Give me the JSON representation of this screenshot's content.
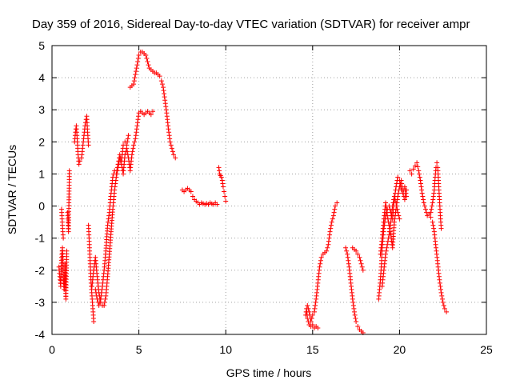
{
  "chart_data": {
    "type": "scatter",
    "title": "Day 359 of 2016, Sidereal Day-to-day VTEC variation (SDTVAR) for receiver ampr",
    "xlabel": "GPS time / hours",
    "ylabel": "SDTVAR / TECUs",
    "xlim": [
      0,
      25
    ],
    "ylim": [
      -4,
      5
    ],
    "xticks": [
      0,
      5,
      10,
      15,
      20,
      25
    ],
    "yticks": [
      -4,
      -3,
      -2,
      -1,
      0,
      1,
      2,
      3,
      4,
      5
    ],
    "grid": true,
    "marker": "+",
    "color": "#ff0000",
    "series": [
      {
        "name": "SDTVAR",
        "segments": [
          [
            [
              0.4,
              -1.9
            ],
            [
              0.45,
              -2.2
            ],
            [
              0.5,
              -2.5
            ],
            [
              0.55,
              -1.6
            ],
            [
              0.6,
              -1.3
            ],
            [
              0.65,
              -2.2
            ],
            [
              0.7,
              -2.6
            ],
            [
              0.75,
              -1.8
            ],
            [
              0.8,
              -2.9
            ],
            [
              0.85,
              -1.4
            ]
          ],
          [
            [
              0.55,
              -0.1
            ],
            [
              0.6,
              -0.6
            ],
            [
              0.65,
              -1.0
            ]
          ],
          [
            [
              0.9,
              -0.2
            ],
            [
              0.92,
              -0.5
            ],
            [
              0.95,
              -0.8
            ],
            [
              1.0,
              1.1
            ]
          ],
          [
            [
              1.3,
              2.0
            ],
            [
              1.35,
              2.3
            ],
            [
              1.4,
              2.5
            ],
            [
              1.45,
              2.1
            ],
            [
              1.5,
              1.6
            ],
            [
              1.55,
              1.3
            ],
            [
              1.6,
              1.4
            ],
            [
              1.7,
              1.5
            ],
            [
              1.8,
              2.0
            ],
            [
              1.9,
              2.5
            ],
            [
              2.0,
              2.8
            ],
            [
              2.05,
              2.3
            ],
            [
              2.1,
              1.9
            ]
          ],
          [
            [
              2.1,
              -0.6
            ],
            [
              2.15,
              -1.2
            ],
            [
              2.2,
              -1.8
            ],
            [
              2.25,
              -2.4
            ],
            [
              2.3,
              -2.8
            ],
            [
              2.35,
              -3.2
            ],
            [
              2.4,
              -3.6
            ]
          ],
          [
            [
              2.3,
              -2.5
            ],
            [
              2.4,
              -2.0
            ],
            [
              2.5,
              -1.6
            ],
            [
              2.6,
              -2.2
            ],
            [
              2.7,
              -2.7
            ],
            [
              2.8,
              -3.0
            ],
            [
              2.9,
              -3.1
            ],
            [
              3.0,
              -3.1
            ],
            [
              3.1,
              -2.8
            ],
            [
              3.2,
              -2.2
            ],
            [
              3.3,
              -1.5
            ],
            [
              3.4,
              -0.8
            ],
            [
              3.5,
              -0.1
            ],
            [
              3.6,
              0.5
            ],
            [
              3.7,
              0.9
            ],
            [
              3.8,
              1.2
            ],
            [
              3.9,
              1.5
            ],
            [
              4.0,
              1.3
            ],
            [
              4.1,
              1.0
            ],
            [
              4.2,
              1.6
            ],
            [
              4.3,
              1.8
            ],
            [
              4.4,
              1.5
            ],
            [
              4.5,
              1.1
            ],
            [
              4.6,
              1.6
            ],
            [
              4.7,
              1.9
            ],
            [
              4.8,
              2.1
            ],
            [
              4.9,
              2.5
            ],
            [
              5.0,
              2.9
            ],
            [
              5.1,
              2.95
            ],
            [
              5.2,
              2.9
            ],
            [
              5.3,
              2.85
            ],
            [
              5.4,
              2.9
            ],
            [
              5.5,
              2.95
            ],
            [
              5.6,
              2.9
            ],
            [
              5.7,
              2.85
            ],
            [
              5.8,
              2.95
            ]
          ],
          [
            [
              2.5,
              -2.6
            ],
            [
              2.6,
              -2.9
            ],
            [
              2.7,
              -3.1
            ],
            [
              2.8,
              -2.9
            ],
            [
              2.9,
              -2.5
            ],
            [
              3.0,
              -2.0
            ],
            [
              3.1,
              -1.4
            ],
            [
              3.2,
              -0.6
            ],
            [
              3.3,
              -0.2
            ],
            [
              3.4,
              0.4
            ],
            [
              3.5,
              0.9
            ],
            [
              3.6,
              1.1
            ],
            [
              3.7,
              1.0
            ],
            [
              3.8,
              1.3
            ],
            [
              3.9,
              1.6
            ],
            [
              4.0,
              1.4
            ],
            [
              4.1,
              1.9
            ],
            [
              4.2,
              2.0
            ],
            [
              4.3,
              1.9
            ],
            [
              4.4,
              2.2
            ]
          ],
          [
            [
              4.5,
              3.7
            ],
            [
              4.6,
              3.75
            ],
            [
              4.7,
              3.8
            ],
            [
              4.8,
              4.1
            ],
            [
              4.9,
              4.4
            ],
            [
              5.0,
              4.7
            ],
            [
              5.1,
              4.8
            ],
            [
              5.2,
              4.8
            ],
            [
              5.3,
              4.75
            ],
            [
              5.4,
              4.7
            ],
            [
              5.5,
              4.5
            ],
            [
              5.6,
              4.3
            ],
            [
              5.7,
              4.25
            ],
            [
              5.8,
              4.2
            ],
            [
              5.9,
              4.15
            ],
            [
              6.0,
              4.15
            ],
            [
              6.1,
              4.1
            ],
            [
              6.2,
              4.05
            ],
            [
              6.3,
              3.9
            ],
            [
              6.4,
              3.7
            ],
            [
              6.5,
              3.3
            ],
            [
              6.6,
              2.9
            ],
            [
              6.7,
              2.4
            ],
            [
              6.8,
              2.0
            ],
            [
              6.9,
              1.8
            ],
            [
              7.0,
              1.6
            ],
            [
              7.1,
              1.5
            ]
          ],
          [
            [
              7.5,
              0.5
            ],
            [
              7.6,
              0.45
            ],
            [
              7.7,
              0.5
            ],
            [
              7.8,
              0.55
            ],
            [
              7.9,
              0.5
            ],
            [
              8.0,
              0.45
            ],
            [
              8.1,
              0.3
            ],
            [
              8.2,
              0.2
            ],
            [
              8.3,
              0.15
            ],
            [
              8.4,
              0.1
            ],
            [
              8.5,
              0.05
            ],
            [
              8.6,
              0.1
            ],
            [
              8.7,
              0.08
            ],
            [
              8.8,
              0.05
            ],
            [
              8.9,
              0.08
            ],
            [
              9.0,
              0.05
            ],
            [
              9.1,
              0.1
            ],
            [
              9.2,
              0.07
            ],
            [
              9.3,
              0.05
            ],
            [
              9.4,
              0.1
            ],
            [
              9.5,
              0.05
            ]
          ],
          [
            [
              9.6,
              1.2
            ],
            [
              9.65,
              1.0
            ],
            [
              9.7,
              0.95
            ],
            [
              9.75,
              0.9
            ],
            [
              9.8,
              0.8
            ],
            [
              9.85,
              0.6
            ],
            [
              9.9,
              0.45
            ],
            [
              9.95,
              0.3
            ],
            [
              10.0,
              0.15
            ]
          ],
          [
            [
              14.6,
              -3.4
            ],
            [
              14.65,
              -3.2
            ],
            [
              14.7,
              -3.5
            ],
            [
              14.8,
              -3.7
            ],
            [
              14.9,
              -3.75
            ],
            [
              15.0,
              -3.7
            ],
            [
              15.1,
              -3.8
            ],
            [
              15.2,
              -3.75
            ],
            [
              15.3,
              -3.8
            ]
          ],
          [
            [
              14.7,
              -3.1
            ],
            [
              14.8,
              -3.3
            ],
            [
              14.9,
              -3.6
            ],
            [
              15.0,
              -3.4
            ],
            [
              15.1,
              -3.3
            ],
            [
              15.2,
              -2.9
            ],
            [
              15.3,
              -2.4
            ],
            [
              15.4,
              -1.9
            ],
            [
              15.5,
              -1.6
            ],
            [
              15.6,
              -1.5
            ],
            [
              15.7,
              -1.45
            ],
            [
              15.8,
              -1.4
            ],
            [
              15.9,
              -1.2
            ],
            [
              16.0,
              -0.8
            ],
            [
              16.1,
              -0.5
            ],
            [
              16.2,
              -0.3
            ],
            [
              16.3,
              0.0
            ],
            [
              16.4,
              0.1
            ]
          ],
          [
            [
              16.9,
              -1.3
            ],
            [
              17.0,
              -1.5
            ],
            [
              17.1,
              -1.9
            ],
            [
              17.2,
              -2.4
            ],
            [
              17.3,
              -2.9
            ],
            [
              17.4,
              -3.3
            ],
            [
              17.5,
              -3.6
            ],
            [
              17.6,
              -3.75
            ],
            [
              17.7,
              -3.85
            ],
            [
              17.8,
              -3.9
            ],
            [
              17.9,
              -3.95
            ]
          ],
          [
            [
              17.3,
              -1.3
            ],
            [
              17.4,
              -1.35
            ],
            [
              17.5,
              -1.4
            ],
            [
              17.6,
              -1.5
            ],
            [
              17.7,
              -1.6
            ],
            [
              17.8,
              -1.8
            ],
            [
              17.9,
              -2.0
            ]
          ],
          [
            [
              18.8,
              -2.9
            ],
            [
              18.85,
              -2.6
            ],
            [
              18.9,
              -2.3
            ],
            [
              18.95,
              -1.9
            ],
            [
              19.0,
              -1.3
            ],
            [
              19.1,
              -0.7
            ],
            [
              19.2,
              -0.3
            ],
            [
              19.3,
              -0.1
            ],
            [
              19.4,
              0.0
            ],
            [
              19.5,
              -0.2
            ],
            [
              19.6,
              -0.4
            ],
            [
              19.7,
              0.2
            ],
            [
              19.8,
              0.6
            ],
            [
              19.9,
              0.9
            ],
            [
              20.0,
              0.8
            ],
            [
              20.1,
              0.5
            ],
            [
              20.2,
              0.4
            ],
            [
              20.3,
              0.6
            ],
            [
              20.4,
              0.3
            ]
          ],
          [
            [
              18.9,
              -1.5
            ],
            [
              19.0,
              -1.0
            ],
            [
              19.1,
              -0.4
            ],
            [
              19.2,
              0.1
            ],
            [
              19.3,
              -0.3
            ],
            [
              19.4,
              -0.6
            ],
            [
              19.5,
              -0.9
            ],
            [
              19.6,
              -1.3
            ],
            [
              19.7,
              -0.5
            ],
            [
              19.8,
              -0.1
            ],
            [
              19.9,
              0.3
            ],
            [
              20.0,
              0.6
            ],
            [
              20.1,
              0.8
            ],
            [
              20.2,
              0.4
            ],
            [
              20.3,
              0.2
            ],
            [
              20.4,
              0.5
            ]
          ],
          [
            [
              19.0,
              -2.5
            ],
            [
              19.1,
              -2.0
            ],
            [
              19.2,
              -1.5
            ],
            [
              19.3,
              -1.2
            ],
            [
              19.4,
              -0.9
            ],
            [
              19.5,
              -0.5
            ],
            [
              19.6,
              0.0
            ],
            [
              19.7,
              0.3
            ],
            [
              19.8,
              0.1
            ],
            [
              19.9,
              -0.2
            ],
            [
              20.0,
              -0.4
            ]
          ],
          [
            [
              20.6,
              1.1
            ],
            [
              20.7,
              1.0
            ],
            [
              20.8,
              1.15
            ],
            [
              20.9,
              1.25
            ],
            [
              21.0,
              1.35
            ],
            [
              21.1,
              1.1
            ],
            [
              21.2,
              0.8
            ],
            [
              21.3,
              0.4
            ],
            [
              21.4,
              0.1
            ],
            [
              21.5,
              -0.1
            ],
            [
              21.6,
              -0.3
            ],
            [
              21.7,
              -0.25
            ],
            [
              21.8,
              -0.35
            ],
            [
              21.9,
              -0.5
            ],
            [
              22.0,
              -0.8
            ],
            [
              22.1,
              -1.3
            ],
            [
              22.2,
              -1.8
            ],
            [
              22.3,
              -2.3
            ],
            [
              22.4,
              -2.7
            ],
            [
              22.5,
              -3.0
            ],
            [
              22.6,
              -3.2
            ],
            [
              22.7,
              -3.3
            ]
          ],
          [
            [
              21.8,
              -0.2
            ],
            [
              21.9,
              0.1
            ],
            [
              22.0,
              0.5
            ],
            [
              22.05,
              0.9
            ],
            [
              22.1,
              1.2
            ],
            [
              22.15,
              1.35
            ],
            [
              22.2,
              1.2
            ],
            [
              22.25,
              0.7
            ],
            [
              22.3,
              0.2
            ],
            [
              22.35,
              -0.3
            ],
            [
              22.4,
              -0.7
            ]
          ]
        ]
      }
    ]
  }
}
